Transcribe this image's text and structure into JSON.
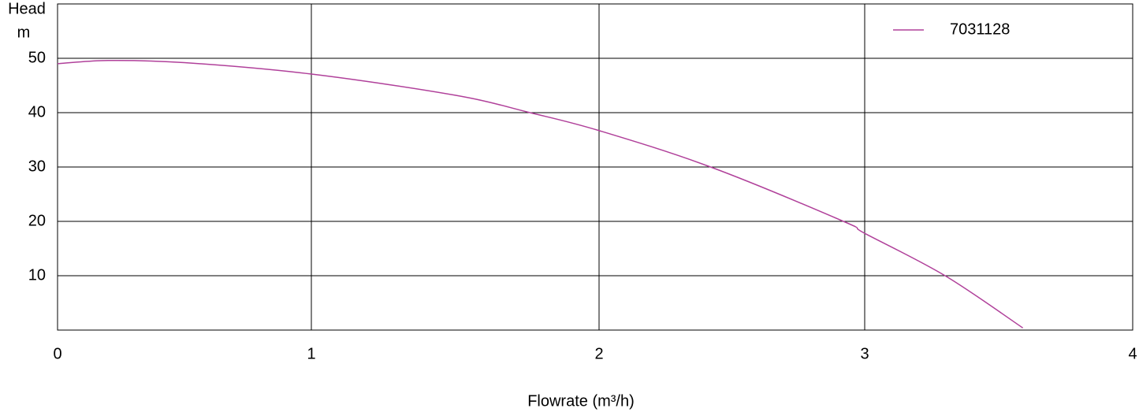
{
  "chart_data": {
    "type": "line",
    "ylabel": "Head",
    "yunit": "m",
    "xlabel": "Flowrate (m³/h)",
    "x": [
      0,
      0.2,
      0.5,
      1,
      1.5,
      1.76,
      2,
      2.42,
      2.92,
      3,
      3.3,
      3.59
    ],
    "series": [
      {
        "name": "7031128",
        "color": "#b0409a",
        "values": [
          49,
          49.6,
          49.2,
          47.1,
          43.2,
          40,
          36.7,
          30,
          20,
          17.8,
          10,
          0.4
        ]
      }
    ],
    "xlim": [
      0,
      4
    ],
    "xticks": [
      0,
      1,
      2,
      3,
      4
    ],
    "ylim": [
      0,
      60
    ],
    "yticks": [
      10,
      20,
      30,
      40,
      50
    ],
    "grid": true,
    "legend": "upper right"
  }
}
